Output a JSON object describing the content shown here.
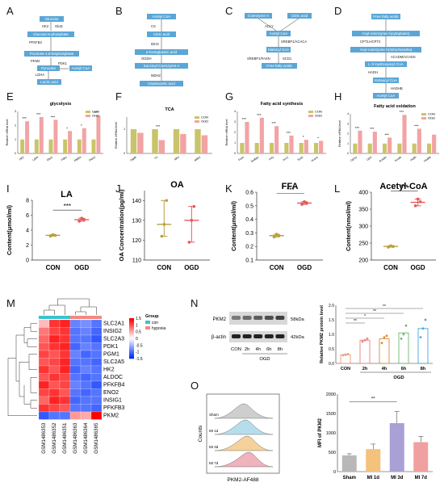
{
  "panel_labels": [
    "A",
    "B",
    "C",
    "D",
    "E",
    "F",
    "G",
    "H",
    "I",
    "J",
    "K",
    "L",
    "M",
    "N",
    "O"
  ],
  "pathway_A": {
    "nodes": [
      "Glucose",
      "Glucose-6-phosphate",
      "Fructose-1,6-bisphosphate",
      "Pyruvate",
      "Acetyl CoA",
      "Lactic acid"
    ],
    "enzymes": [
      "HK2",
      "Glut1",
      "PFKFB3",
      "PKM2",
      "PDK1",
      "LDHA"
    ]
  },
  "pathway_B": {
    "nodes": [
      "Acetyl CoA",
      "Citric acid",
      "α-Ketoglutaric acid",
      "Succinyl-Coenzyme A",
      "Oxaloacetic acid"
    ],
    "enzymes": [
      "CS",
      "IDH3",
      "OGDH",
      "MDH2"
    ]
  },
  "pathway_C": {
    "nodes": [
      "Coenzyme A",
      "Citric acid",
      "Acetyl CoA",
      "Malonyl CoA",
      "Free fatty acids"
    ],
    "enzymes": [
      "ACLY",
      "SREBP1/ACACA",
      "SREBP1/FASN",
      "SCD1"
    ]
  },
  "pathway_D": {
    "nodes": [
      "Free fatty acids",
      "Acyl-coenzyme A(cytoplasm)",
      "Acyl-coenzyme A(mitochondria)",
      "L-3-Hydroxyacyl-CoA",
      "Ketoacyl CoA",
      "Acetyl CoA"
    ],
    "enzymes": [
      "CPT1A/CPT2",
      "ACADM/ACADS",
      "HADH",
      "HADHB"
    ]
  },
  "colors": {
    "con": "#c9c46a",
    "ogd": "#f2a3a3",
    "con_dot": "#b8a040",
    "ogd_dot": "#e55a5a",
    "pathway_box": "#5ba6d6",
    "heat_high": "#e41a1c",
    "heat_low": "#2e3fd6",
    "group_con": "#39c4cf",
    "group_hyp": "#f08a80"
  },
  "chart_data": [
    {
      "panel": "E",
      "type": "bar",
      "title": "glycolysis",
      "ylabel": "Relative mRNA level",
      "categories": [
        "HK2",
        "LdhA",
        "Glut1",
        "Pdk1",
        "Pfkfb3",
        "Pkm2"
      ],
      "series": [
        {
          "name": "CON",
          "values": [
            1.0,
            1.0,
            1.0,
            1.0,
            1.0,
            1.0
          ]
        },
        {
          "name": "OGD",
          "values": [
            2.3,
            2.6,
            2.4,
            1.6,
            1.8,
            2.7
          ]
        }
      ],
      "significance": [
        "***",
        "***",
        "***",
        "*",
        "*",
        "***"
      ],
      "legend": [
        "CON",
        "OGD"
      ]
    },
    {
      "panel": "F",
      "type": "bar",
      "title": "TCA",
      "ylabel": "Relative mRNA level",
      "categories": [
        "Ogdh",
        "Cs",
        "Idh3",
        "Mdh2"
      ],
      "series": [
        {
          "name": "CON",
          "values": [
            1.0,
            1.0,
            1.0,
            1.0
          ]
        },
        {
          "name": "OGD",
          "values": [
            0.85,
            0.55,
            0.8,
            0.75
          ]
        }
      ],
      "significance": [
        "",
        "***",
        "",
        ""
      ],
      "legend": [
        "CON",
        "OGD"
      ]
    },
    {
      "panel": "G",
      "type": "bar",
      "title": "Fatty acid synthesis",
      "ylabel": "Relative mRNA level",
      "categories": [
        "Fasn",
        "Srebp1",
        "Acly",
        "Acc1",
        "Scd1",
        "Acaca"
      ],
      "series": [
        {
          "name": "CON",
          "values": [
            1.0,
            1.0,
            1.0,
            1.0,
            1.0,
            1.0
          ]
        },
        {
          "name": "OGD",
          "values": [
            3.0,
            3.4,
            2.6,
            1.7,
            1.3,
            1.2
          ]
        }
      ],
      "significance": [
        "***",
        "***",
        "***",
        "***",
        "*",
        "*"
      ],
      "legend": [
        "CON",
        "OGD"
      ]
    },
    {
      "panel": "H",
      "type": "bar",
      "title": "Fatty acid oxidation",
      "ylabel": "Relative mRNA level",
      "categories": [
        "Cpt1a",
        "Cpt2",
        "Acadm",
        "Acads",
        "Hadh",
        "Hadhb"
      ],
      "series": [
        {
          "name": "CON",
          "values": [
            1.0,
            1.0,
            1.0,
            1.0,
            1.0,
            1.0
          ]
        },
        {
          "name": "OGD",
          "values": [
            2.3,
            2.2,
            1.6,
            3.9,
            2.5,
            1.9
          ]
        }
      ],
      "significance": [
        "***",
        "***",
        "***",
        "***",
        "***",
        ""
      ],
      "legend": [
        "CON",
        "OGD"
      ]
    },
    {
      "panel": "I",
      "type": "box",
      "title": "LA",
      "ylabel": "Content(μmol/ml)",
      "categories": [
        "CON",
        "OGD"
      ],
      "values": [
        3.3,
        5.4
      ],
      "points": [
        [
          3.2,
          3.4,
          3.3
        ],
        [
          5.2,
          5.6,
          5.4
        ]
      ],
      "ylim": [
        0,
        8
      ],
      "yticks": [
        0,
        2,
        4,
        6,
        8
      ],
      "significance": "***"
    },
    {
      "panel": "J",
      "type": "box",
      "title": "OA",
      "ylabel": "OA Concentration(pg/ml)",
      "categories": [
        "CON",
        "OGD"
      ],
      "values": [
        128,
        130
      ],
      "points": [
        [
          122,
          128,
          140
        ],
        [
          119,
          130,
          137
        ]
      ],
      "ylim": [
        110,
        145
      ],
      "yticks": [
        110,
        120,
        130,
        140
      ],
      "significance": ""
    },
    {
      "panel": "K",
      "type": "box",
      "title": "FFA",
      "ylabel": "Content(μmol/ml)",
      "categories": [
        "CON",
        "OGD"
      ],
      "values": [
        0.28,
        0.52
      ],
      "points": [
        [
          0.27,
          0.29,
          0.28
        ],
        [
          0.51,
          0.53,
          0.52
        ]
      ],
      "ylim": [
        0.1,
        0.6
      ],
      "yticks": [
        0.1,
        0.2,
        0.3,
        0.4,
        0.5,
        0.6
      ],
      "significance": "***"
    },
    {
      "panel": "L",
      "type": "box",
      "title": "Acetyl-CoA",
      "ylabel": "Content(nmol/ml)",
      "categories": [
        "CON",
        "OGD"
      ],
      "values": [
        240,
        370
      ],
      "points": [
        [
          238,
          242,
          240
        ],
        [
          360,
          380,
          372
        ]
      ],
      "ylim": [
        200,
        400
      ],
      "yticks": [
        200,
        250,
        300,
        350,
        400
      ],
      "significance": "***"
    },
    {
      "panel": "M",
      "type": "heatmap",
      "rows": [
        "SLC2A1",
        "INSIG2",
        "SLC2A3",
        "PDK1",
        "PGM1",
        "SLC2A5",
        "HK2",
        "ALDOC",
        "PFKFB4",
        "ENO2",
        "INSIG1",
        "PFKFB3",
        "PKM2"
      ],
      "columns": [
        "GSM1486353",
        "GSM1486352",
        "GSM1486351",
        "GSM1486363",
        "GSM1486364",
        "GSM1486365"
      ],
      "groups": [
        "con",
        "con",
        "con",
        "hypoxia",
        "hypoxia",
        "hypoxia"
      ],
      "values": [
        [
          0.4,
          1.2,
          1.3,
          -0.9,
          -0.8,
          -1.0
        ],
        [
          0.8,
          1.1,
          1.2,
          -1.0,
          -0.9,
          -1.1
        ],
        [
          0.9,
          1.3,
          1.2,
          -1.0,
          -1.0,
          -1.2
        ],
        [
          1.0,
          1.2,
          1.3,
          -1.1,
          -0.9,
          -1.0
        ],
        [
          1.1,
          1.0,
          1.2,
          -0.9,
          -1.1,
          -1.0
        ],
        [
          1.0,
          1.1,
          1.3,
          -1.0,
          -1.0,
          -1.1
        ],
        [
          1.2,
          1.0,
          1.3,
          -1.1,
          -0.9,
          -1.0
        ],
        [
          1.0,
          1.2,
          1.1,
          -1.0,
          -1.1,
          -1.0
        ],
        [
          1.3,
          1.0,
          1.1,
          -0.9,
          -1.0,
          -1.2
        ],
        [
          1.1,
          1.2,
          1.0,
          -1.0,
          -1.1,
          -1.0
        ],
        [
          0.9,
          1.3,
          1.2,
          -1.1,
          -1.0,
          -1.0
        ],
        [
          1.2,
          1.1,
          1.0,
          -1.0,
          -1.0,
          -1.1
        ],
        [
          -1.2,
          -1.0,
          -1.0,
          0.6,
          0.5,
          1.5
        ]
      ],
      "legend_ticks": [
        "1.5",
        "1",
        "0.5",
        "0",
        "-0.5",
        "-1",
        "-1.5"
      ],
      "legend_title": "Group",
      "legend": [
        "con",
        "hypoxia"
      ]
    },
    {
      "panel": "N",
      "type": "bar",
      "ylabel": "Relative PKM2 protein level",
      "xlabel": "OGD",
      "categories": [
        "CON",
        "2h",
        "4h",
        "6h",
        "8h"
      ],
      "values": [
        0.3,
        0.8,
        0.85,
        1.05,
        1.2
      ],
      "points": [
        [
          0.28,
          0.3,
          0.32
        ],
        [
          0.75,
          0.8,
          0.85
        ],
        [
          0.7,
          0.9,
          0.95
        ],
        [
          0.85,
          1.0,
          1.3
        ],
        [
          0.9,
          1.2,
          1.5
        ]
      ],
      "ylim": [
        0,
        2.0
      ],
      "yticks": [
        0.0,
        0.5,
        1.0,
        1.5,
        2.0
      ],
      "significance": [
        "**",
        "*",
        "**",
        "**"
      ]
    },
    {
      "panel": "O",
      "type": "bar",
      "ylabel": "MFI of PKM2",
      "categories": [
        "Sham",
        "MI 1d",
        "MI 3d",
        "MI 7d"
      ],
      "values": [
        420,
        580,
        1250,
        760
      ],
      "errors": [
        40,
        130,
        300,
        150
      ],
      "ylim": [
        0,
        2000
      ],
      "yticks": [
        0,
        500,
        1000,
        1500,
        2000
      ],
      "significance": "**"
    }
  ],
  "blot": {
    "proteins": [
      "PKM2",
      "β-actin"
    ],
    "sizes": [
      "58kDa",
      "42kDa"
    ],
    "lanes": [
      "CON",
      "2h",
      "4h",
      "6h",
      "8h"
    ],
    "group_label": "OGD"
  },
  "flow": {
    "xlabel": "PKM2-AF488",
    "ylabel": "Counts",
    "tracks": [
      "Sham",
      "MI 1d",
      "MI 3d",
      "MI 7d"
    ]
  }
}
